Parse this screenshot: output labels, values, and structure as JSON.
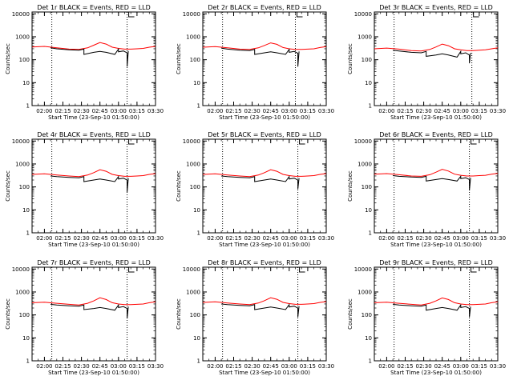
{
  "xlabel": "Start Time (23-Sep-10 01:50:00)",
  "ylabel": "Counts/sec",
  "x_ticks": [
    "02:00",
    "02:15",
    "02:30",
    "02:45",
    "03:00",
    "03:15",
    "03:30"
  ],
  "y_ticks": [
    "1",
    "10",
    "100",
    "1000",
    "10000"
  ],
  "colors": {
    "events": "#000000",
    "lld": "#ff0000"
  },
  "chart_data": [
    {
      "type": "line",
      "title": "Det 1r BLACK = Events, RED = LLD",
      "y_scale": "log",
      "ylim": [
        1,
        12000
      ],
      "xlim": [
        "01:50",
        "03:30"
      ],
      "grid": false,
      "event_markers": [
        "02:06",
        "03:07"
      ],
      "series": [
        {
          "color": "#ff0000",
          "x": [
            "01:50",
            "02:00",
            "02:10",
            "02:20",
            "02:28",
            "02:35",
            "02:40",
            "02:45",
            "02:50",
            "02:55",
            "03:00",
            "03:05",
            "03:10",
            "03:15",
            "03:20",
            "03:25",
            "03:30"
          ],
          "y": [
            360,
            380,
            330,
            290,
            280,
            330,
            430,
            560,
            480,
            350,
            310,
            290,
            290,
            300,
            310,
            350,
            380
          ]
        },
        {
          "color": "#000000",
          "x": [
            "02:05",
            "02:10",
            "02:20",
            "02:28",
            "02:32",
            "02:32",
            "02:40",
            "02:45",
            "02:50",
            "02:57",
            "03:00",
            "03:00",
            "03:04",
            "03:04",
            "03:07",
            "03:07",
            "03:08"
          ],
          "y": [
            330,
            300,
            270,
            260,
            290,
            170,
            210,
            230,
            210,
            170,
            290,
            220,
            240,
            240,
            200,
            50,
            240
          ]
        }
      ]
    },
    {
      "type": "line",
      "title": "Det 2r BLACK = Events, RED = LLD",
      "y_scale": "log",
      "ylim": [
        1,
        12000
      ],
      "xlim": [
        "01:50",
        "03:30"
      ],
      "grid": false,
      "event_markers": [
        "02:06",
        "03:05"
      ],
      "series": [
        {
          "color": "#ff0000",
          "x": [
            "01:50",
            "02:00",
            "02:10",
            "02:20",
            "02:28",
            "02:35",
            "02:40",
            "02:45",
            "02:50",
            "02:55",
            "03:00",
            "03:05",
            "03:10",
            "03:15",
            "03:20",
            "03:25",
            "03:30"
          ],
          "y": [
            350,
            370,
            330,
            290,
            280,
            330,
            420,
            540,
            470,
            340,
            300,
            280,
            280,
            290,
            300,
            340,
            370
          ]
        },
        {
          "color": "#000000",
          "x": [
            "02:05",
            "02:10",
            "02:20",
            "02:28",
            "02:32",
            "02:32",
            "02:40",
            "02:45",
            "02:50",
            "02:57",
            "03:00",
            "03:00",
            "03:04",
            "03:04",
            "03:07",
            "03:07",
            "03:08"
          ],
          "y": [
            320,
            290,
            260,
            250,
            280,
            170,
            200,
            220,
            200,
            170,
            280,
            210,
            230,
            230,
            190,
            50,
            230
          ]
        }
      ]
    },
    {
      "type": "line",
      "title": "Det 3r BLACK = Events, RED = LLD",
      "y_scale": "log",
      "ylim": [
        1,
        12000
      ],
      "xlim": [
        "01:50",
        "03:30"
      ],
      "grid": false,
      "event_markers": [
        "02:06",
        "03:09"
      ],
      "series": [
        {
          "color": "#ff0000",
          "x": [
            "01:50",
            "02:00",
            "02:10",
            "02:20",
            "02:28",
            "02:35",
            "02:40",
            "02:45",
            "02:50",
            "02:55",
            "03:00",
            "03:05",
            "03:10",
            "03:15",
            "03:20",
            "03:25",
            "03:30"
          ],
          "y": [
            300,
            320,
            290,
            250,
            240,
            280,
            360,
            480,
            410,
            300,
            270,
            250,
            250,
            260,
            270,
            300,
            330
          ]
        },
        {
          "color": "#000000",
          "x": [
            "02:05",
            "02:10",
            "02:20",
            "02:28",
            "02:32",
            "02:32",
            "02:40",
            "02:45",
            "02:50",
            "02:57",
            "03:00",
            "03:00",
            "03:04",
            "03:04",
            "03:07",
            "03:07",
            "03:08"
          ],
          "y": [
            260,
            240,
            210,
            200,
            230,
            140,
            160,
            180,
            160,
            130,
            230,
            180,
            200,
            200,
            160,
            70,
            200
          ]
        }
      ]
    },
    {
      "type": "line",
      "title": "Det 4r BLACK = Events, RED = LLD",
      "y_scale": "log",
      "ylim": [
        1,
        12000
      ],
      "xlim": [
        "01:50",
        "03:30"
      ],
      "grid": false,
      "event_markers": [
        "02:06",
        "03:07"
      ],
      "series": [
        {
          "color": "#ff0000",
          "x": [
            "01:50",
            "02:00",
            "02:10",
            "02:20",
            "02:28",
            "02:35",
            "02:40",
            "02:45",
            "02:50",
            "02:55",
            "03:00",
            "03:05",
            "03:10",
            "03:15",
            "03:20",
            "03:25",
            "03:30"
          ],
          "y": [
            350,
            370,
            330,
            300,
            280,
            330,
            420,
            560,
            480,
            350,
            310,
            290,
            290,
            300,
            310,
            350,
            380
          ]
        },
        {
          "color": "#000000",
          "x": [
            "02:05",
            "02:10",
            "02:20",
            "02:28",
            "02:32",
            "02:32",
            "02:40",
            "02:45",
            "02:50",
            "02:57",
            "03:00",
            "03:00",
            "03:04",
            "03:04",
            "03:07",
            "03:07",
            "03:08"
          ],
          "y": [
            300,
            280,
            260,
            250,
            280,
            170,
            200,
            220,
            200,
            170,
            280,
            220,
            240,
            240,
            200,
            60,
            240
          ]
        }
      ]
    },
    {
      "type": "line",
      "title": "Det 5r BLACK = Events, RED = LLD",
      "y_scale": "log",
      "ylim": [
        1,
        12000
      ],
      "xlim": [
        "01:50",
        "03:30"
      ],
      "grid": false,
      "event_markers": [
        "02:06",
        "03:07"
      ],
      "series": [
        {
          "color": "#ff0000",
          "x": [
            "01:50",
            "02:00",
            "02:10",
            "02:20",
            "02:28",
            "02:35",
            "02:40",
            "02:45",
            "02:50",
            "02:55",
            "03:00",
            "03:05",
            "03:10",
            "03:15",
            "03:20",
            "03:25",
            "03:30"
          ],
          "y": [
            350,
            370,
            330,
            300,
            280,
            330,
            420,
            560,
            480,
            350,
            310,
            290,
            290,
            300,
            310,
            350,
            380
          ]
        },
        {
          "color": "#000000",
          "x": [
            "02:05",
            "02:10",
            "02:20",
            "02:28",
            "02:32",
            "02:32",
            "02:40",
            "02:45",
            "02:50",
            "02:57",
            "03:00",
            "03:00",
            "03:04",
            "03:04",
            "03:07",
            "03:07",
            "03:08"
          ],
          "y": [
            300,
            280,
            260,
            250,
            280,
            170,
            200,
            220,
            200,
            170,
            280,
            220,
            240,
            240,
            200,
            80,
            240
          ]
        }
      ]
    },
    {
      "type": "line",
      "title": "Det 6r BLACK = Events, RED = LLD",
      "y_scale": "log",
      "ylim": [
        1,
        12000
      ],
      "xlim": [
        "01:50",
        "03:30"
      ],
      "grid": false,
      "event_markers": [
        "02:06",
        "03:07"
      ],
      "series": [
        {
          "color": "#ff0000",
          "x": [
            "01:50",
            "02:00",
            "02:10",
            "02:20",
            "02:28",
            "02:35",
            "02:40",
            "02:45",
            "02:50",
            "02:55",
            "03:00",
            "03:05",
            "03:10",
            "03:15",
            "03:20",
            "03:25",
            "03:30"
          ],
          "y": [
            360,
            380,
            340,
            300,
            290,
            340,
            440,
            580,
            490,
            360,
            320,
            300,
            300,
            310,
            320,
            360,
            390
          ]
        },
        {
          "color": "#000000",
          "x": [
            "02:05",
            "02:10",
            "02:20",
            "02:28",
            "02:32",
            "02:32",
            "02:40",
            "02:45",
            "02:50",
            "02:57",
            "03:00",
            "03:00",
            "03:04",
            "03:04",
            "03:07",
            "03:07",
            "03:08"
          ],
          "y": [
            310,
            290,
            270,
            260,
            290,
            180,
            210,
            230,
            210,
            180,
            290,
            230,
            250,
            250,
            210,
            70,
            250
          ]
        }
      ]
    },
    {
      "type": "line",
      "title": "Det 7r BLACK = Events, RED = LLD",
      "y_scale": "log",
      "ylim": [
        1,
        12000
      ],
      "xlim": [
        "01:50",
        "03:30"
      ],
      "grid": false,
      "event_markers": [
        "02:06",
        "03:07"
      ],
      "series": [
        {
          "color": "#ff0000",
          "x": [
            "01:50",
            "02:00",
            "02:10",
            "02:20",
            "02:28",
            "02:35",
            "02:40",
            "02:45",
            "02:50",
            "02:55",
            "03:00",
            "03:05",
            "03:10",
            "03:15",
            "03:20",
            "03:25",
            "03:30"
          ],
          "y": [
            340,
            360,
            320,
            290,
            270,
            320,
            410,
            560,
            470,
            340,
            300,
            280,
            280,
            290,
            300,
            340,
            370
          ]
        },
        {
          "color": "#000000",
          "x": [
            "02:05",
            "02:10",
            "02:20",
            "02:28",
            "02:32",
            "02:32",
            "02:40",
            "02:45",
            "02:50",
            "02:57",
            "03:00",
            "03:00",
            "03:04",
            "03:04",
            "03:07",
            "03:07",
            "03:08"
          ],
          "y": [
            290,
            270,
            250,
            240,
            270,
            170,
            190,
            210,
            190,
            160,
            270,
            210,
            230,
            230,
            190,
            70,
            230
          ]
        }
      ]
    },
    {
      "type": "line",
      "title": "Det 8r BLACK = Events, RED = LLD",
      "y_scale": "log",
      "ylim": [
        1,
        12000
      ],
      "xlim": [
        "01:50",
        "03:30"
      ],
      "grid": false,
      "event_markers": [
        "02:06",
        "03:07"
      ],
      "series": [
        {
          "color": "#ff0000",
          "x": [
            "01:50",
            "02:00",
            "02:10",
            "02:20",
            "02:28",
            "02:35",
            "02:40",
            "02:45",
            "02:50",
            "02:55",
            "03:00",
            "03:05",
            "03:10",
            "03:15",
            "03:20",
            "03:25",
            "03:30"
          ],
          "y": [
            350,
            370,
            330,
            300,
            280,
            330,
            420,
            560,
            480,
            350,
            310,
            290,
            290,
            300,
            310,
            350,
            380
          ]
        },
        {
          "color": "#000000",
          "x": [
            "02:05",
            "02:10",
            "02:20",
            "02:28",
            "02:32",
            "02:32",
            "02:40",
            "02:45",
            "02:50",
            "02:57",
            "03:00",
            "03:00",
            "03:04",
            "03:04",
            "03:07",
            "03:07",
            "03:08"
          ],
          "y": [
            300,
            280,
            260,
            250,
            280,
            170,
            200,
            220,
            200,
            170,
            280,
            220,
            240,
            240,
            200,
            80,
            240
          ]
        }
      ]
    },
    {
      "type": "line",
      "title": "Det 9r BLACK = Events, RED = LLD",
      "y_scale": "log",
      "ylim": [
        1,
        12000
      ],
      "xlim": [
        "01:50",
        "03:30"
      ],
      "grid": false,
      "event_markers": [
        "02:06",
        "03:07"
      ],
      "series": [
        {
          "color": "#ff0000",
          "x": [
            "01:50",
            "02:00",
            "02:10",
            "02:20",
            "02:28",
            "02:35",
            "02:40",
            "02:45",
            "02:50",
            "02:55",
            "03:00",
            "03:05",
            "03:10",
            "03:15",
            "03:20",
            "03:25",
            "03:30"
          ],
          "y": [
            340,
            360,
            320,
            290,
            270,
            320,
            410,
            550,
            470,
            340,
            300,
            280,
            280,
            290,
            300,
            340,
            370
          ]
        },
        {
          "color": "#000000",
          "x": [
            "02:05",
            "02:10",
            "02:20",
            "02:28",
            "02:32",
            "02:32",
            "02:40",
            "02:45",
            "02:50",
            "02:57",
            "03:00",
            "03:00",
            "03:04",
            "03:04",
            "03:07",
            "03:07",
            "03:08"
          ],
          "y": [
            290,
            270,
            250,
            240,
            270,
            160,
            190,
            210,
            190,
            160,
            270,
            210,
            230,
            230,
            190,
            80,
            230
          ]
        }
      ]
    }
  ]
}
